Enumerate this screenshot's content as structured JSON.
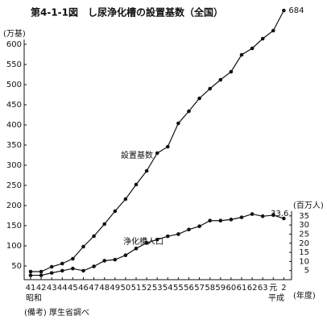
{
  "chart_data": {
    "type": "line",
    "title": "第4-1-1図　し尿浄化槽の設置基数（全国）",
    "y_label": "(万基)",
    "y2_label": "(百万人)",
    "x_label": "(年度)",
    "era_labels": [
      "昭和",
      "平成"
    ],
    "note": "(備考)  厚生省調べ",
    "categories": [
      "41",
      "42",
      "43",
      "44",
      "45",
      "46",
      "47",
      "48",
      "49",
      "50",
      "51",
      "52",
      "53",
      "54",
      "55",
      "56",
      "57",
      "58",
      "59",
      "60",
      "61",
      "62",
      "63",
      "元",
      "2"
    ],
    "series": [
      {
        "name": "設置基数",
        "color": "#111111",
        "values": [
          36,
          36,
          48,
          56,
          68,
          98,
          124,
          154,
          186,
          216,
          252,
          286,
          330,
          346,
          404,
          434,
          466,
          490,
          512,
          532,
          574,
          590,
          614,
          634,
          684
        ]
      },
      {
        "name": "浄化槽人口",
        "color": "#111111",
        "axis": "y2",
        "values": [
          2.4,
          2.4,
          3.7,
          4.9,
          6.1,
          4.9,
          7.3,
          10.4,
          11,
          13.4,
          17.1,
          20.2,
          22,
          23.8,
          25,
          27.5,
          29.3,
          32.4,
          32.4,
          33,
          34.2,
          36,
          34.8,
          35.4,
          33.6
        ]
      }
    ],
    "ylim": [
      16,
      690
    ],
    "yticks": [
      50,
      100,
      150,
      200,
      250,
      300,
      350,
      400,
      450,
      500,
      550,
      600
    ],
    "y2lim": [
      0,
      149
    ],
    "y2ticks": [
      5,
      10,
      15,
      20,
      25,
      30,
      35
    ],
    "grid": false
  }
}
